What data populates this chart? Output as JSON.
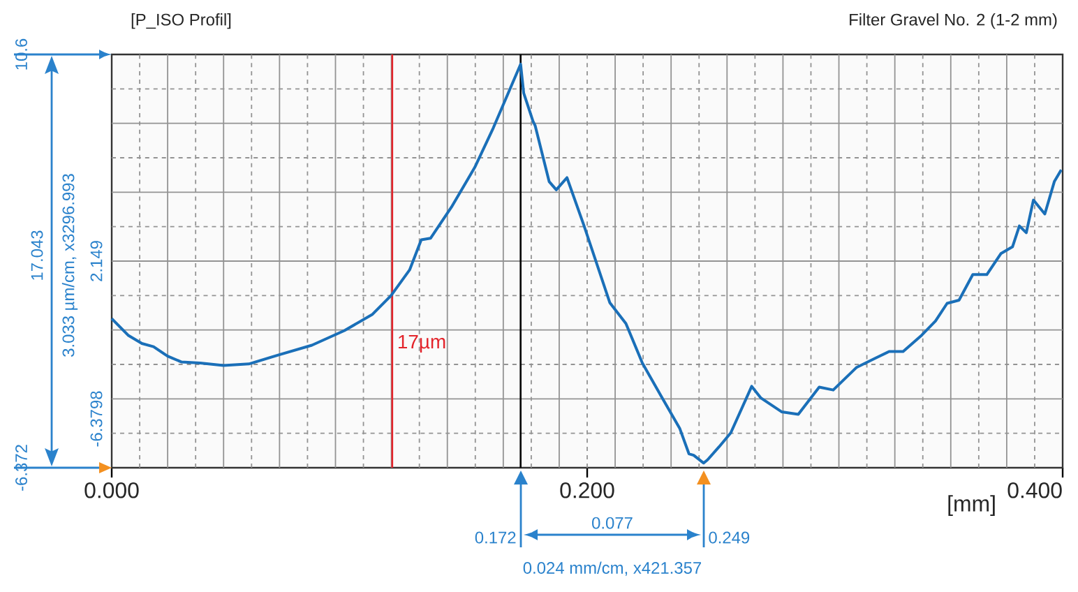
{
  "chart_data": {
    "type": "line",
    "title": "Filter Gravel No. 2 (1-2 mm)",
    "subtitle": "[P_ISO Profil]",
    "xlabel": "[mm]",
    "xlim": [
      0,
      0.4
    ],
    "xticks": [
      {
        "value": 0,
        "label": "0.000"
      },
      {
        "value": 0.2,
        "label": "0.200"
      },
      {
        "value": 0.4,
        "label": "0.400"
      }
    ],
    "ylim": [
      -6.372,
      10.6
    ],
    "yticks": [
      {
        "value": 10.6,
        "label": "10.6"
      },
      {
        "value": -6.372,
        "label": "-6.372"
      }
    ],
    "grid": true,
    "line_style": "solid",
    "series": [
      {
        "color": "#1a6fb8",
        "x": [
          0.0,
          0.0069,
          0.0127,
          0.0176,
          0.0235,
          0.0294,
          0.0372,
          0.047,
          0.0577,
          0.0705,
          0.0842,
          0.0979,
          0.1097,
          0.1175,
          0.1253,
          0.1302,
          0.1341,
          0.1429,
          0.1527,
          0.1605,
          0.172,
          0.1733,
          0.1772,
          0.1781,
          0.184,
          0.187,
          0.1915,
          0.1987,
          0.2095,
          0.2163,
          0.2232,
          0.231,
          0.2389,
          0.2428,
          0.2448,
          0.249,
          0.2506,
          0.2555,
          0.2604,
          0.2692,
          0.2731,
          0.2819,
          0.2888,
          0.2976,
          0.3035,
          0.3132,
          0.3211,
          0.327,
          0.3329,
          0.3407,
          0.3465,
          0.3514,
          0.3564,
          0.3622,
          0.3681,
          0.374,
          0.3789,
          0.3818,
          0.3847,
          0.3877,
          0.3925,
          0.3965,
          0.3994
        ],
        "values": [
          -0.25,
          -0.93,
          -1.27,
          -1.4,
          -1.79,
          -2.03,
          -2.07,
          -2.17,
          -2.11,
          -1.73,
          -1.34,
          -0.74,
          -0.07,
          0.7,
          1.75,
          2.99,
          3.05,
          4.33,
          5.96,
          7.58,
          10.2,
          9.01,
          7.86,
          7.68,
          5.38,
          5.04,
          5.54,
          3.56,
          0.41,
          -0.45,
          -2.07,
          -3.41,
          -4.75,
          -5.8,
          -5.86,
          -6.18,
          -6.05,
          -5.51,
          -4.94,
          -3.03,
          -3.51,
          -4.08,
          -4.18,
          -3.06,
          -3.18,
          -2.26,
          -1.88,
          -1.6,
          -1.6,
          -0.93,
          -0.35,
          0.38,
          0.51,
          1.56,
          1.56,
          2.42,
          2.7,
          3.56,
          3.28,
          4.62,
          4.05,
          5.38,
          5.86
        ]
      }
    ],
    "ref_lines": [
      {
        "axis": "x",
        "value": 0.118,
        "label": "17µm",
        "color": "#e3242b"
      },
      {
        "axis": "x",
        "value": 0.172,
        "color": "#000000"
      }
    ],
    "annotations": [
      "0.172",
      "0.249",
      "0.077",
      "0.024 mm/cm, x421.357",
      "17.043",
      "3.033 µm/cm, x3296.993",
      "2.149",
      "-6.3798"
    ]
  }
}
